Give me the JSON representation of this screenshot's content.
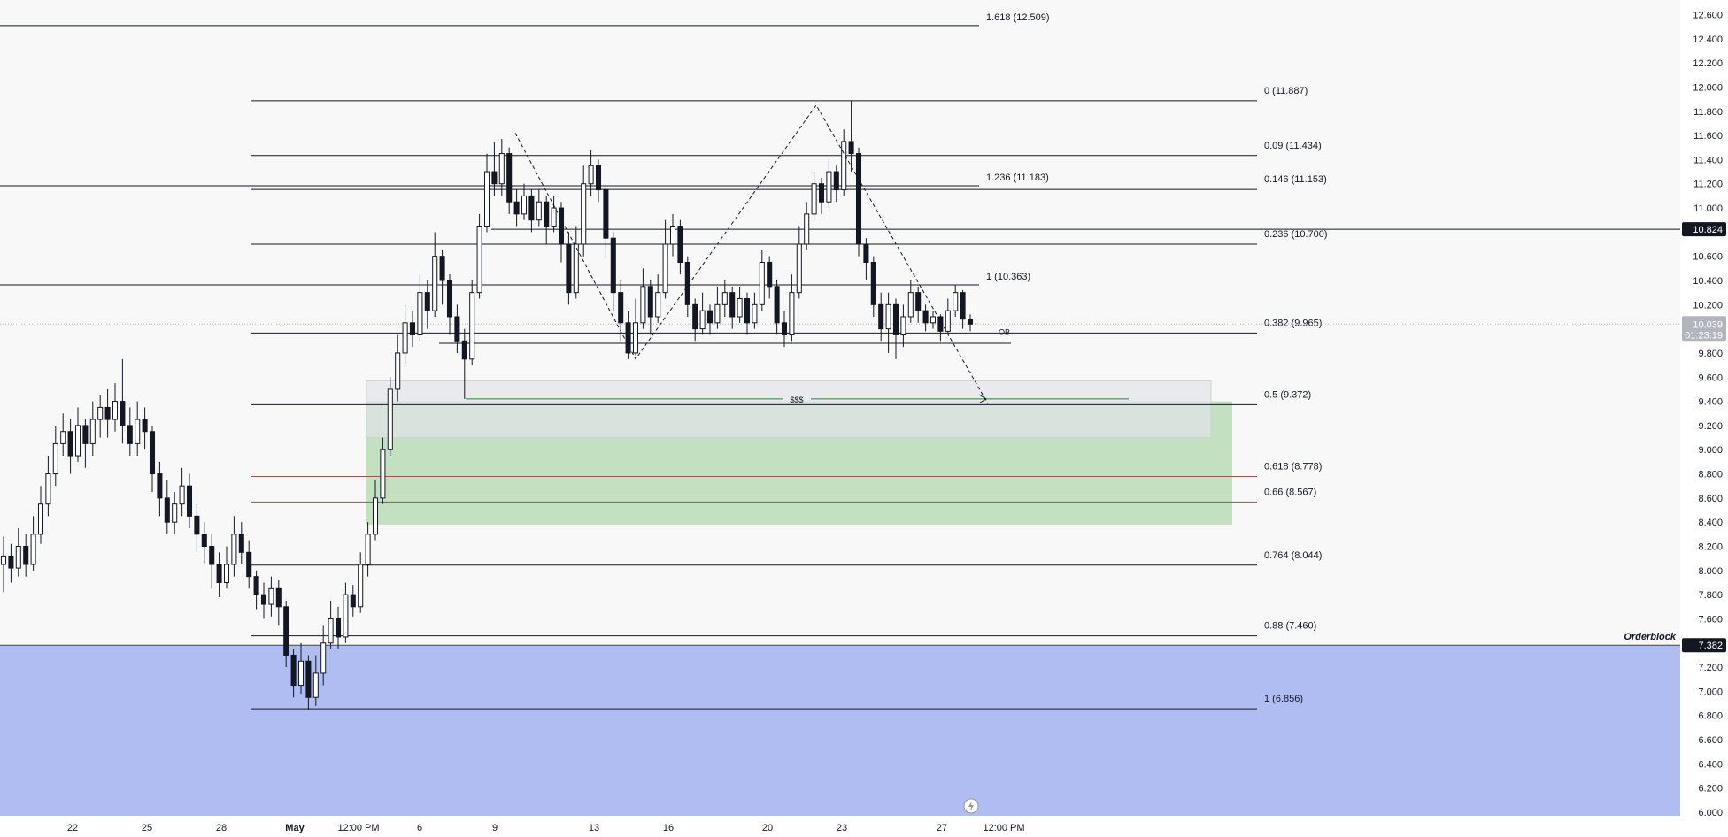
{
  "chart_data": {
    "type": "candlestick",
    "title": "",
    "xlabel": "",
    "ylabel": "",
    "ylim": [
      6.0,
      12.6
    ],
    "grid": false,
    "y_ticks": [
      "12.600",
      "12.400",
      "12.200",
      "12.000",
      "11.800",
      "11.600",
      "11.400",
      "11.200",
      "11.000",
      "10.800",
      "10.600",
      "10.400",
      "10.200",
      "10.000",
      "9.800",
      "9.600",
      "9.400",
      "9.200",
      "9.000",
      "8.800",
      "8.600",
      "8.400",
      "8.200",
      "8.000",
      "7.800",
      "7.600",
      "7.400",
      "7.200",
      "7.000",
      "6.800",
      "6.600",
      "6.400",
      "6.200",
      "6.000"
    ],
    "x_ticks": [
      {
        "label": "22",
        "bold": false
      },
      {
        "label": "25",
        "bold": false
      },
      {
        "label": "28",
        "bold": false
      },
      {
        "label": "May",
        "bold": true
      },
      {
        "label": "12:00 PM",
        "bold": false
      },
      {
        "label": "6",
        "bold": false
      },
      {
        "label": "9",
        "bold": false
      },
      {
        "label": "13",
        "bold": false
      },
      {
        "label": "16",
        "bold": false
      },
      {
        "label": "20",
        "bold": false
      },
      {
        "label": "23",
        "bold": false
      },
      {
        "label": "27",
        "bold": false
      },
      {
        "label": "12:00 PM",
        "bold": false
      }
    ],
    "price_tags": [
      {
        "value": 10.824,
        "label": "10.824",
        "bg": "#131722"
      },
      {
        "value": 10.039,
        "label": "10.039",
        "sub": "01:23:19",
        "bg": "#b2b5be"
      },
      {
        "value": 7.382,
        "label": "7.382",
        "bg": "#131722"
      }
    ],
    "fib_levels": [
      {
        "value": 11.887,
        "label": "0 (11.887)",
        "color": "#131722"
      },
      {
        "value": 11.434,
        "label": "0.09 (11.434)",
        "color": "#131722"
      },
      {
        "value": 11.153,
        "label": "0.146 (11.153)",
        "color": "#131722"
      },
      {
        "value": 10.7,
        "label": "0.236 (10.700)",
        "color": "#131722"
      },
      {
        "value": 9.965,
        "label": "0.382 (9.965)",
        "color": "#131722"
      },
      {
        "value": 9.372,
        "label": "0.5 (9.372)",
        "color": "#131722"
      },
      {
        "value": 8.778,
        "label": "0.618 (8.778)",
        "color": "#a05050"
      },
      {
        "value": 8.567,
        "label": "0.66 (8.567)",
        "color": "#a05050"
      },
      {
        "value": 8.044,
        "label": "0.764 (8.044)",
        "color": "#131722"
      },
      {
        "value": 7.46,
        "label": "0.88 (7.460)",
        "color": "#131722"
      },
      {
        "value": 6.856,
        "label": "1 (6.856)",
        "color": "#131722"
      }
    ],
    "ext_levels": [
      {
        "value": 12.509,
        "label": "1.618 (12.509)"
      },
      {
        "value": 11.183,
        "label": "1.236 (11.183)"
      },
      {
        "value": 10.363,
        "label": "1 (10.363)"
      }
    ],
    "zones": [
      {
        "name": "orderblock",
        "top": 7.382,
        "bottom": 6.0,
        "color": "#b0bdf3",
        "label": "Orderblock"
      },
      {
        "name": "green-zone",
        "top": 9.4,
        "bottom": 8.38,
        "color": "#c3e0c1"
      },
      {
        "name": "grey-zone",
        "top": 9.57,
        "bottom": 9.1,
        "color": "#e3e4e8"
      }
    ],
    "annotations": [
      {
        "name": "liquidity-label",
        "text": "$$$",
        "value": 9.42
      },
      {
        "name": "ob-label",
        "text": "OB",
        "value": 9.95
      }
    ],
    "candles": [
      [
        8.05,
        8.12,
        8.28,
        7.82
      ],
      [
        8.12,
        8.02,
        8.22,
        7.9
      ],
      [
        8.02,
        8.2,
        8.35,
        7.95
      ],
      [
        8.2,
        8.05,
        8.3,
        7.95
      ],
      [
        8.05,
        8.3,
        8.45,
        8.0
      ],
      [
        8.3,
        8.55,
        8.7,
        8.22
      ],
      [
        8.55,
        8.8,
        8.95,
        8.45
      ],
      [
        8.8,
        9.05,
        9.2,
        8.7
      ],
      [
        9.05,
        9.15,
        9.3,
        8.95
      ],
      [
        9.15,
        8.95,
        9.25,
        8.8
      ],
      [
        8.95,
        9.2,
        9.35,
        8.9
      ],
      [
        9.2,
        9.05,
        9.25,
        8.85
      ],
      [
        9.05,
        9.25,
        9.4,
        8.95
      ],
      [
        9.25,
        9.35,
        9.45,
        9.1
      ],
      [
        9.35,
        9.25,
        9.5,
        9.1
      ],
      [
        9.25,
        9.4,
        9.55,
        9.15
      ],
      [
        9.4,
        9.2,
        9.75,
        9.05
      ],
      [
        9.2,
        9.05,
        9.35,
        8.95
      ],
      [
        9.05,
        9.25,
        9.4,
        8.95
      ],
      [
        9.25,
        9.15,
        9.35,
        9.0
      ],
      [
        9.15,
        8.8,
        9.2,
        8.65
      ],
      [
        8.8,
        8.6,
        8.9,
        8.45
      ],
      [
        8.6,
        8.4,
        8.75,
        8.3
      ],
      [
        8.4,
        8.55,
        8.65,
        8.3
      ],
      [
        8.55,
        8.7,
        8.85,
        8.45
      ],
      [
        8.7,
        8.45,
        8.8,
        8.35
      ],
      [
        8.45,
        8.3,
        8.55,
        8.15
      ],
      [
        8.3,
        8.2,
        8.4,
        8.05
      ],
      [
        8.2,
        8.05,
        8.3,
        7.85
      ],
      [
        8.05,
        7.9,
        8.15,
        7.78
      ],
      [
        7.9,
        8.05,
        8.2,
        7.85
      ],
      [
        8.05,
        8.3,
        8.45,
        7.95
      ],
      [
        8.3,
        8.15,
        8.4,
        8.05
      ],
      [
        8.15,
        7.95,
        8.25,
        7.85
      ],
      [
        7.95,
        7.8,
        8.0,
        7.68
      ],
      [
        7.8,
        7.72,
        7.9,
        7.6
      ],
      [
        7.72,
        7.85,
        7.95,
        7.62
      ],
      [
        7.85,
        7.7,
        7.92,
        7.55
      ],
      [
        7.7,
        7.3,
        7.75,
        7.2
      ],
      [
        7.3,
        7.05,
        7.35,
        6.95
      ],
      [
        7.05,
        7.25,
        7.4,
        6.98
      ],
      [
        7.25,
        6.95,
        7.3,
        6.85
      ],
      [
        6.95,
        7.15,
        7.3,
        6.88
      ],
      [
        7.15,
        7.4,
        7.55,
        7.05
      ],
      [
        7.4,
        7.6,
        7.75,
        7.35
      ],
      [
        7.6,
        7.45,
        7.7,
        7.35
      ],
      [
        7.45,
        7.8,
        7.9,
        7.4
      ],
      [
        7.8,
        7.7,
        7.88,
        7.62
      ],
      [
        7.7,
        8.05,
        8.15,
        7.65
      ],
      [
        8.05,
        8.3,
        8.4,
        7.95
      ],
      [
        8.3,
        8.6,
        8.75,
        8.25
      ],
      [
        8.6,
        9.0,
        9.1,
        8.55
      ],
      [
        9.0,
        9.5,
        9.6,
        8.95
      ],
      [
        9.5,
        9.8,
        9.95,
        9.4
      ],
      [
        9.8,
        10.05,
        10.2,
        9.7
      ],
      [
        10.05,
        9.95,
        10.15,
        9.85
      ],
      [
        9.95,
        10.3,
        10.45,
        9.9
      ],
      [
        10.3,
        10.15,
        10.4,
        10.0
      ],
      [
        10.15,
        10.6,
        10.8,
        10.1
      ],
      [
        10.6,
        10.4,
        10.65,
        10.2
      ],
      [
        10.4,
        10.1,
        10.45,
        9.95
      ],
      [
        10.1,
        9.9,
        10.2,
        9.8
      ],
      [
        9.9,
        9.75,
        10.0,
        9.42
      ],
      [
        9.75,
        10.3,
        10.4,
        9.7
      ],
      [
        10.3,
        10.85,
        10.95,
        10.25
      ],
      [
        10.85,
        11.3,
        11.45,
        10.8
      ],
      [
        11.3,
        11.2,
        11.55,
        11.1
      ],
      [
        11.2,
        11.45,
        11.57,
        11.1
      ],
      [
        11.45,
        11.05,
        11.5,
        10.95
      ],
      [
        11.05,
        10.95,
        11.15,
        10.85
      ],
      [
        10.95,
        11.1,
        11.2,
        10.9
      ],
      [
        11.1,
        10.9,
        11.15,
        10.8
      ],
      [
        10.9,
        11.05,
        11.15,
        10.85
      ],
      [
        11.05,
        10.85,
        11.1,
        10.7
      ],
      [
        10.85,
        11.0,
        11.1,
        10.8
      ],
      [
        11.0,
        10.7,
        11.05,
        10.55
      ],
      [
        10.7,
        10.3,
        10.8,
        10.2
      ],
      [
        10.3,
        10.7,
        10.85,
        10.25
      ],
      [
        10.7,
        11.2,
        11.35,
        10.6
      ],
      [
        11.2,
        11.35,
        11.48,
        11.1
      ],
      [
        11.35,
        11.15,
        11.4,
        11.05
      ],
      [
        11.15,
        10.75,
        11.2,
        10.6
      ],
      [
        10.75,
        10.3,
        10.8,
        10.15
      ],
      [
        10.3,
        10.05,
        10.4,
        9.9
      ],
      [
        10.05,
        9.8,
        10.15,
        9.75
      ],
      [
        9.8,
        10.05,
        10.25,
        9.78
      ],
      [
        10.05,
        10.35,
        10.5,
        10.0
      ],
      [
        10.35,
        10.1,
        10.4,
        9.95
      ],
      [
        10.1,
        10.3,
        10.45,
        10.05
      ],
      [
        10.3,
        10.7,
        10.9,
        10.25
      ],
      [
        10.7,
        10.85,
        10.95,
        10.6
      ],
      [
        10.85,
        10.55,
        10.9,
        10.45
      ],
      [
        10.55,
        10.2,
        10.6,
        10.1
      ],
      [
        10.2,
        10.0,
        10.25,
        9.9
      ],
      [
        10.0,
        10.15,
        10.3,
        9.95
      ],
      [
        10.15,
        10.05,
        10.2,
        9.95
      ],
      [
        10.05,
        10.2,
        10.35,
        10.0
      ],
      [
        10.2,
        10.3,
        10.4,
        10.1
      ],
      [
        10.3,
        10.1,
        10.35,
        10.0
      ],
      [
        10.1,
        10.25,
        10.35,
        10.05
      ],
      [
        10.25,
        10.05,
        10.3,
        9.95
      ],
      [
        10.05,
        10.2,
        10.3,
        10.0
      ],
      [
        10.2,
        10.55,
        10.65,
        10.15
      ],
      [
        10.55,
        10.35,
        10.6,
        10.25
      ],
      [
        10.35,
        10.05,
        10.4,
        9.95
      ],
      [
        10.05,
        9.95,
        10.15,
        9.85
      ],
      [
        9.95,
        10.3,
        10.45,
        9.9
      ],
      [
        10.3,
        10.7,
        10.85,
        10.25
      ],
      [
        10.7,
        10.95,
        11.05,
        10.65
      ],
      [
        10.95,
        11.2,
        11.3,
        10.9
      ],
      [
        11.2,
        11.05,
        11.25,
        10.95
      ],
      [
        11.05,
        11.3,
        11.4,
        11.0
      ],
      [
        11.3,
        11.15,
        11.35,
        11.05
      ],
      [
        11.15,
        11.55,
        11.65,
        11.1
      ],
      [
        11.55,
        11.45,
        11.887,
        11.3
      ],
      [
        11.45,
        10.7,
        11.5,
        10.6
      ],
      [
        10.7,
        10.55,
        10.75,
        10.4
      ],
      [
        10.55,
        10.2,
        10.6,
        10.1
      ],
      [
        10.2,
        10.0,
        10.3,
        9.9
      ],
      [
        10.0,
        10.2,
        10.3,
        9.8
      ],
      [
        10.2,
        9.95,
        10.25,
        9.75
      ],
      [
        9.95,
        10.1,
        10.2,
        9.85
      ],
      [
        10.1,
        10.3,
        10.4,
        10.05
      ],
      [
        10.3,
        10.15,
        10.35,
        10.05
      ],
      [
        10.15,
        10.05,
        10.2,
        9.98
      ],
      [
        10.05,
        10.1,
        10.15,
        10.0
      ],
      [
        10.1,
        9.98,
        10.12,
        9.9
      ],
      [
        9.98,
        10.15,
        10.25,
        9.95
      ],
      [
        10.15,
        10.3,
        10.36,
        10.1
      ],
      [
        10.3,
        10.08,
        10.32,
        10.0
      ],
      [
        10.08,
        10.039,
        10.12,
        9.98
      ]
    ]
  }
}
